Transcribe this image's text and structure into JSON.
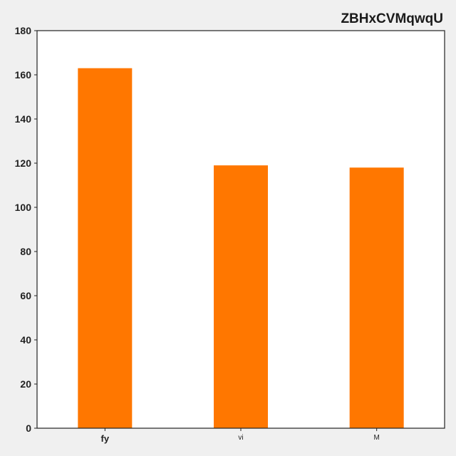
{
  "chart_data": {
    "type": "bar",
    "title": "ZBHxCVMqwqU",
    "xlabel": "",
    "ylabel": "",
    "categories": [
      "fy",
      "vi",
      "M"
    ],
    "values": [
      163,
      119,
      118
    ],
    "ylim": [
      0,
      180
    ],
    "yticks": [
      0,
      20,
      40,
      60,
      80,
      100,
      120,
      140,
      160,
      180
    ],
    "grid": false,
    "legend": "none",
    "bar_color": "#ff7700",
    "background_color": "#f0f0f0",
    "plot_background_color": "#ffffff"
  }
}
